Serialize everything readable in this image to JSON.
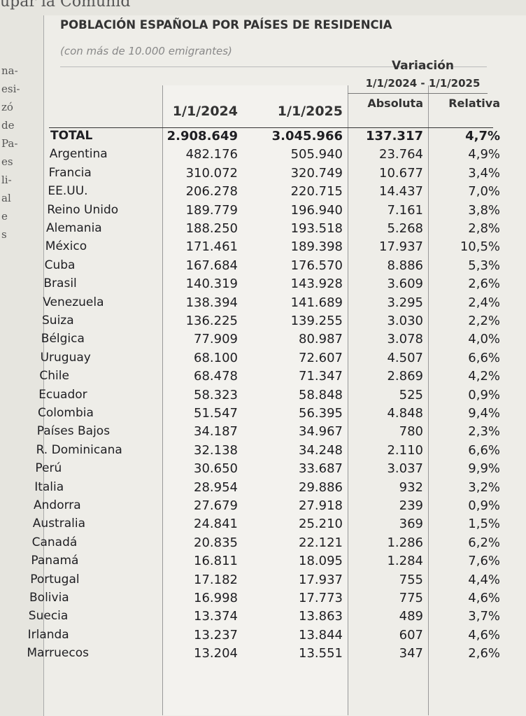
{
  "page_fragments": {
    "top": "upar la Comunid",
    "left": [
      "na-",
      "esi-",
      "zó",
      "de",
      "Pa-",
      "es",
      "li-",
      "al",
      "e",
      "s"
    ]
  },
  "header": {
    "title": "POBLACIÓN ESPAÑOLA POR PAÍSES DE RESIDENCIA",
    "subtitle": "(con más de 10.000 emigrantes)"
  },
  "table": {
    "group_header": "Variación",
    "group_period": "1/1/2024 - 1/1/2025",
    "columns": [
      "",
      "1/1/2024",
      "1/1/2025",
      "Absoluta",
      "Relativa"
    ],
    "total": [
      "TOTAL",
      "2.908.649",
      "3.045.966",
      "137.317",
      "4,7%"
    ],
    "rows": [
      [
        "Argentina",
        "482.176",
        "505.940",
        "23.764",
        "4,9%"
      ],
      [
        "Francia",
        "310.072",
        "320.749",
        "10.677",
        "3,4%"
      ],
      [
        "EE.UU.",
        "206.278",
        "220.715",
        "14.437",
        "7,0%"
      ],
      [
        "Reino Unido",
        "189.779",
        "196.940",
        "7.161",
        "3,8%"
      ],
      [
        "Alemania",
        "188.250",
        "193.518",
        "5.268",
        "2,8%"
      ],
      [
        "México",
        "171.461",
        "189.398",
        "17.937",
        "10,5%"
      ],
      [
        "Cuba",
        "167.684",
        "176.570",
        "8.886",
        "5,3%"
      ],
      [
        "Brasil",
        "140.319",
        "143.928",
        "3.609",
        "2,6%"
      ],
      [
        "Venezuela",
        "138.394",
        "141.689",
        "3.295",
        "2,4%"
      ],
      [
        "Suiza",
        "136.225",
        "139.255",
        "3.030",
        "2,2%"
      ],
      [
        "Bélgica",
        "77.909",
        "80.987",
        "3.078",
        "4,0%"
      ],
      [
        "Uruguay",
        "68.100",
        "72.607",
        "4.507",
        "6,6%"
      ],
      [
        "Chile",
        "68.478",
        "71.347",
        "2.869",
        "4,2%"
      ],
      [
        "Ecuador",
        "58.323",
        "58.848",
        "525",
        "0,9%"
      ],
      [
        "Colombia",
        "51.547",
        "56.395",
        "4.848",
        "9,4%"
      ],
      [
        "Países Bajos",
        "34.187",
        "34.967",
        "780",
        "2,3%"
      ],
      [
        "R. Dominicana",
        "32.138",
        "34.248",
        "2.110",
        "6,6%"
      ],
      [
        "Perú",
        "30.650",
        "33.687",
        "3.037",
        "9,9%"
      ],
      [
        "Italia",
        "28.954",
        "29.886",
        "932",
        "3,2%"
      ],
      [
        "Andorra",
        "27.679",
        "27.918",
        "239",
        "0,9%"
      ],
      [
        "Australia",
        "24.841",
        "25.210",
        "369",
        "1,5%"
      ],
      [
        "Canadá",
        "20.835",
        "22.121",
        "1.286",
        "6,2%"
      ],
      [
        "Panamá",
        "16.811",
        "18.095",
        "1.284",
        "7,6%"
      ],
      [
        "Portugal",
        "17.182",
        "17.937",
        "755",
        "4,4%"
      ],
      [
        "Bolivia",
        "16.998",
        "17.773",
        "775",
        "4,6%"
      ],
      [
        "Suecia",
        "13.374",
        "13.863",
        "489",
        "3,7%"
      ],
      [
        "Irlanda",
        "13.237",
        "13.844",
        "607",
        "4,6%"
      ],
      [
        "Marruecos",
        "13.204",
        "13.551",
        "347",
        "2,6%"
      ]
    ]
  }
}
